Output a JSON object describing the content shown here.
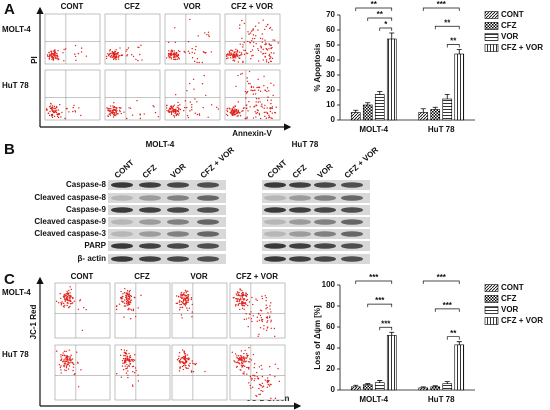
{
  "panels": {
    "A": {
      "label": "A",
      "columns": [
        "CONT",
        "CFZ",
        "VOR",
        "CFZ + VOR"
      ],
      "rows": [
        "MOLT-4",
        "HuT 78"
      ],
      "y_axis": "PI",
      "x_axis": "Annexin-V"
    },
    "B": {
      "label": "B",
      "cell_lines": [
        "MOLT-4",
        "HuT 78"
      ],
      "lanes": [
        "CONT",
        "CFZ",
        "VOR",
        "CFZ + VOR"
      ],
      "proteins": [
        "Caspase-8",
        "Cleaved caspase-8",
        "Caspase-9",
        "Cleaved caspase-9",
        "Cleaved caspase-3",
        "PARP",
        "β- actin"
      ]
    },
    "C": {
      "label": "C",
      "columns": [
        "CONT",
        "CFZ",
        "VOR",
        "CFZ + VOR"
      ],
      "rows": [
        "MOLT-4",
        "HuT 78"
      ],
      "y_axis": "JC-1 Red",
      "x_axis": "JC-1 Green"
    }
  },
  "chart_data": [
    {
      "type": "bar",
      "ylabel": "% Apoptosis",
      "categories": [
        "MOLT-4",
        "HuT 78"
      ],
      "series": [
        {
          "name": "CONT",
          "color": "#000000",
          "pattern": "diagonal",
          "values": [
            5,
            5
          ],
          "errors": [
            1.5,
            2.5
          ]
        },
        {
          "name": "CFZ",
          "color": "#000000",
          "pattern": "cross",
          "values": [
            10,
            7
          ],
          "errors": [
            1.5,
            1.5
          ]
        },
        {
          "name": "VOR",
          "color": "#000000",
          "pattern": "horizontal",
          "values": [
            17,
            14
          ],
          "errors": [
            2,
            3
          ]
        },
        {
          "name": "CFZ + VOR",
          "color": "#000000",
          "pattern": "vertical",
          "values": [
            54,
            44
          ],
          "errors": [
            4,
            3
          ]
        }
      ],
      "ylim": [
        0,
        70
      ],
      "yticks": [
        0,
        10,
        20,
        30,
        40,
        50,
        60,
        70
      ],
      "significance": [
        [
          "**",
          "**",
          "*"
        ],
        [
          "***",
          "**",
          "**"
        ]
      ]
    },
    {
      "type": "bar",
      "ylabel": "Loss of Δψm [%]",
      "categories": [
        "MOLT-4",
        "HuT 78"
      ],
      "series": [
        {
          "name": "CONT",
          "color": "#000000",
          "pattern": "diagonal",
          "values": [
            3,
            2
          ],
          "errors": [
            1.5,
            1
          ]
        },
        {
          "name": "CFZ",
          "color": "#000000",
          "pattern": "cross",
          "values": [
            5,
            3
          ],
          "errors": [
            1,
            1
          ]
        },
        {
          "name": "VOR",
          "color": "#000000",
          "pattern": "horizontal",
          "values": [
            7,
            6
          ],
          "errors": [
            2,
            2
          ]
        },
        {
          "name": "CFZ + VOR",
          "color": "#000000",
          "pattern": "vertical",
          "values": [
            52,
            43
          ],
          "errors": [
            3,
            3
          ]
        }
      ],
      "ylim": [
        0,
        100
      ],
      "yticks": [
        0,
        20,
        40,
        60,
        80,
        100
      ],
      "significance": [
        [
          "***",
          "***",
          "***"
        ],
        [
          "***",
          "***",
          "**"
        ]
      ]
    }
  ]
}
